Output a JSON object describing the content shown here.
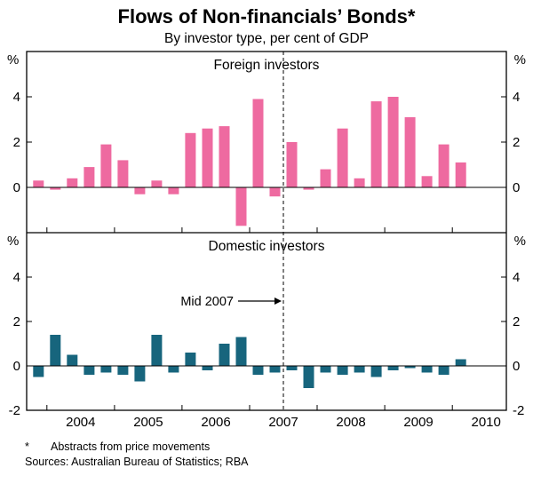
{
  "header": {
    "title": "Flows of Non-financials’ Bonds*",
    "subtitle": "By investor type, per cent of GDP"
  },
  "footer": {
    "footnote_marker": "*",
    "footnote": "Abstracts from price movements",
    "sources": "Sources: Australian Bureau of Statistics; RBA"
  },
  "chart_data": {
    "type": "bar",
    "unit": "%",
    "x_domain": [
      2003.7,
      2010.8
    ],
    "x_year_ticks": [
      2004,
      2005,
      2006,
      2007,
      2008,
      2009,
      2010
    ],
    "x_year_labels": [
      "2004",
      "2005",
      "2006",
      "2007",
      "2008",
      "2009",
      "2010"
    ],
    "ylim": [
      -2,
      6
    ],
    "yticks_top_panel": [
      0,
      2,
      4
    ],
    "yticks_bottom_panel": [
      -2,
      0,
      2,
      4
    ],
    "quarters": [
      "2003Q4",
      "2004Q1",
      "2004Q2",
      "2004Q3",
      "2004Q4",
      "2005Q1",
      "2005Q2",
      "2005Q3",
      "2005Q4",
      "2006Q1",
      "2006Q2",
      "2006Q3",
      "2006Q4",
      "2007Q1",
      "2007Q2",
      "2007Q3",
      "2007Q4",
      "2008Q1",
      "2008Q2",
      "2008Q3",
      "2008Q4",
      "2009Q1",
      "2009Q2",
      "2009Q3",
      "2009Q4",
      "2010Q1"
    ],
    "panels": [
      {
        "id": "foreign",
        "title": "Foreign investors",
        "color": "#ee6aa0",
        "values": [
          0.3,
          -0.1,
          0.4,
          0.9,
          1.9,
          1.2,
          -0.3,
          0.3,
          -0.3,
          2.4,
          2.6,
          2.7,
          -1.7,
          3.9,
          -0.4,
          2.0,
          -0.1,
          0.8,
          2.6,
          0.4,
          3.8,
          4.0,
          3.1,
          0.5,
          1.9,
          1.1
        ]
      },
      {
        "id": "domestic",
        "title": "Domestic investors",
        "color": "#17657d",
        "values": [
          -0.5,
          1.4,
          0.5,
          -0.4,
          -0.3,
          -0.4,
          -0.7,
          1.4,
          -0.3,
          0.6,
          -0.2,
          1.0,
          1.3,
          -0.4,
          -0.3,
          -0.2,
          -1.0,
          -0.3,
          -0.4,
          -0.3,
          -0.5,
          -0.2,
          -0.1,
          -0.3,
          -0.4,
          0.3
        ]
      }
    ],
    "dashed_line": {
      "x": 2007.5,
      "label": "Mid 2007"
    },
    "axis_color": "#000000",
    "grid": false,
    "legend": "none"
  }
}
